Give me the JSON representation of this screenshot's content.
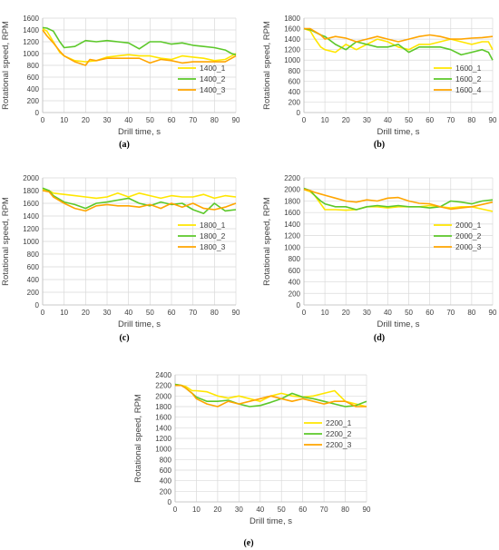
{
  "colors": {
    "series1": "#ffe600",
    "series2": "#5cc82a",
    "series3": "#ffa500"
  },
  "chart_data": [
    {
      "panel": "(a)",
      "type": "line",
      "xlabel": "Drill time, s",
      "ylabel": "Rotational speed, RPM",
      "xlim": [
        0,
        90
      ],
      "ylim": [
        0,
        1600
      ],
      "xticks": [
        0,
        10,
        20,
        30,
        40,
        50,
        60,
        70,
        80,
        90
      ],
      "yticks": [
        0,
        200,
        400,
        600,
        800,
        1000,
        1200,
        1400,
        1600
      ],
      "grid": true,
      "legend_position": "bottom-right",
      "series": [
        {
          "name": "1400_1",
          "color": "#ffe600",
          "x": [
            0,
            2,
            5,
            8,
            10,
            15,
            20,
            25,
            30,
            35,
            40,
            45,
            50,
            55,
            60,
            65,
            70,
            75,
            80,
            85,
            90
          ],
          "y": [
            1420,
            1380,
            1200,
            1020,
            960,
            880,
            860,
            880,
            940,
            960,
            980,
            960,
            960,
            920,
            900,
            960,
            940,
            920,
            880,
            900,
            1000
          ]
        },
        {
          "name": "1400_2",
          "color": "#5cc82a",
          "x": [
            0,
            2,
            5,
            8,
            10,
            15,
            20,
            25,
            30,
            35,
            40,
            45,
            50,
            55,
            60,
            65,
            70,
            75,
            80,
            85,
            88,
            90
          ],
          "y": [
            1440,
            1430,
            1380,
            1200,
            1100,
            1120,
            1220,
            1200,
            1220,
            1200,
            1180,
            1080,
            1200,
            1200,
            1160,
            1180,
            1140,
            1120,
            1100,
            1060,
            1000,
            980
          ]
        },
        {
          "name": "1400_3",
          "color": "#ffa500",
          "x": [
            0,
            2,
            5,
            8,
            10,
            15,
            20,
            22,
            25,
            30,
            35,
            40,
            45,
            50,
            55,
            60,
            65,
            70,
            75,
            80,
            85,
            90
          ],
          "y": [
            1400,
            1300,
            1180,
            1040,
            960,
            860,
            800,
            900,
            880,
            920,
            920,
            920,
            920,
            840,
            900,
            880,
            840,
            860,
            860,
            860,
            860,
            960
          ]
        }
      ]
    },
    {
      "panel": "(b)",
      "type": "line",
      "xlabel": "Drill time, s",
      "ylabel": "Rotational speed, RPM",
      "xlim": [
        0,
        90
      ],
      "ylim": [
        0,
        1800
      ],
      "xticks": [
        0,
        10,
        20,
        30,
        40,
        50,
        60,
        70,
        80,
        90
      ],
      "yticks": [
        0,
        200,
        400,
        600,
        800,
        1000,
        1200,
        1400,
        1600,
        1800
      ],
      "grid": true,
      "legend_position": "bottom-right",
      "series": [
        {
          "name": "1600_1",
          "color": "#ffe600",
          "x": [
            0,
            3,
            5,
            8,
            10,
            15,
            20,
            25,
            30,
            35,
            40,
            45,
            50,
            55,
            60,
            65,
            70,
            75,
            80,
            85,
            88,
            90
          ],
          "y": [
            1600,
            1560,
            1420,
            1250,
            1200,
            1150,
            1300,
            1200,
            1300,
            1400,
            1350,
            1250,
            1200,
            1300,
            1300,
            1350,
            1400,
            1350,
            1300,
            1350,
            1350,
            1200
          ]
        },
        {
          "name": "1600_2",
          "color": "#5cc82a",
          "x": [
            0,
            3,
            5,
            8,
            10,
            15,
            20,
            25,
            30,
            35,
            40,
            45,
            50,
            55,
            60,
            65,
            70,
            75,
            80,
            85,
            88,
            90
          ],
          "y": [
            1600,
            1580,
            1540,
            1480,
            1450,
            1300,
            1200,
            1350,
            1300,
            1250,
            1250,
            1300,
            1150,
            1250,
            1250,
            1250,
            1200,
            1100,
            1150,
            1200,
            1150,
            1000
          ]
        },
        {
          "name": "1600_4",
          "color": "#ffa500",
          "x": [
            0,
            3,
            5,
            8,
            10,
            15,
            20,
            25,
            30,
            35,
            40,
            45,
            50,
            55,
            60,
            65,
            70,
            75,
            80,
            85,
            90
          ],
          "y": [
            1600,
            1600,
            1550,
            1480,
            1400,
            1450,
            1420,
            1350,
            1400,
            1450,
            1400,
            1350,
            1400,
            1450,
            1480,
            1450,
            1400,
            1400,
            1420,
            1430,
            1450
          ]
        }
      ]
    },
    {
      "panel": "(c)",
      "type": "line",
      "xlabel": "Drill time, s",
      "ylabel": "Rotational speed, RPM",
      "xlim": [
        0,
        90
      ],
      "ylim": [
        0,
        2000
      ],
      "xticks": [
        0,
        10,
        20,
        30,
        40,
        50,
        60,
        70,
        80,
        90
      ],
      "yticks": [
        0,
        200,
        400,
        600,
        800,
        1000,
        1200,
        1400,
        1600,
        1800,
        2000
      ],
      "grid": true,
      "legend_position": "bottom-right",
      "series": [
        {
          "name": "1800_1",
          "color": "#ffe600",
          "x": [
            0,
            3,
            5,
            10,
            15,
            20,
            25,
            30,
            35,
            40,
            45,
            50,
            55,
            60,
            65,
            70,
            75,
            80,
            85,
            90
          ],
          "y": [
            1820,
            1800,
            1760,
            1740,
            1720,
            1700,
            1680,
            1700,
            1760,
            1700,
            1760,
            1720,
            1680,
            1720,
            1700,
            1700,
            1740,
            1680,
            1720,
            1700
          ]
        },
        {
          "name": "1800_2",
          "color": "#5cc82a",
          "x": [
            0,
            3,
            5,
            10,
            15,
            20,
            25,
            30,
            35,
            40,
            45,
            50,
            55,
            60,
            65,
            70,
            75,
            80,
            85,
            90
          ],
          "y": [
            1840,
            1800,
            1720,
            1620,
            1580,
            1520,
            1600,
            1620,
            1650,
            1680,
            1600,
            1560,
            1620,
            1580,
            1600,
            1500,
            1440,
            1600,
            1480,
            1500
          ]
        },
        {
          "name": "1800_3",
          "color": "#ffa500",
          "x": [
            0,
            3,
            5,
            10,
            15,
            20,
            25,
            30,
            35,
            40,
            45,
            50,
            55,
            60,
            65,
            70,
            75,
            80,
            85,
            90
          ],
          "y": [
            1800,
            1780,
            1700,
            1600,
            1520,
            1480,
            1560,
            1580,
            1560,
            1560,
            1540,
            1580,
            1520,
            1600,
            1540,
            1600,
            1520,
            1500,
            1540,
            1600
          ]
        }
      ]
    },
    {
      "panel": "(d)",
      "type": "line",
      "xlabel": "Drill time, s",
      "ylabel": "Rotational speed, RPM",
      "xlim": [
        0,
        90
      ],
      "ylim": [
        0,
        2200
      ],
      "xticks": [
        0,
        10,
        20,
        30,
        40,
        50,
        60,
        70,
        80,
        90
      ],
      "yticks": [
        0,
        200,
        400,
        600,
        800,
        1000,
        1200,
        1400,
        1600,
        1800,
        2000,
        2200
      ],
      "grid": true,
      "legend_position": "bottom-right",
      "series": [
        {
          "name": "2000_1",
          "color": "#ffe600",
          "x": [
            0,
            3,
            5,
            8,
            10,
            15,
            20,
            25,
            30,
            35,
            40,
            45,
            50,
            55,
            60,
            65,
            70,
            75,
            80,
            85,
            90
          ],
          "y": [
            2000,
            1960,
            1900,
            1750,
            1650,
            1650,
            1640,
            1650,
            1700,
            1700,
            1680,
            1700,
            1700,
            1700,
            1720,
            1700,
            1680,
            1700,
            1700,
            1660,
            1620
          ]
        },
        {
          "name": "2000_2",
          "color": "#5cc82a",
          "x": [
            0,
            3,
            5,
            8,
            10,
            15,
            20,
            25,
            30,
            35,
            40,
            45,
            50,
            55,
            60,
            65,
            70,
            75,
            80,
            85,
            90
          ],
          "y": [
            2020,
            1980,
            1900,
            1800,
            1750,
            1700,
            1700,
            1650,
            1700,
            1720,
            1700,
            1720,
            1700,
            1700,
            1680,
            1700,
            1800,
            1780,
            1750,
            1800,
            1820
          ]
        },
        {
          "name": "2000_3",
          "color": "#ffa500",
          "x": [
            0,
            3,
            5,
            8,
            10,
            15,
            20,
            25,
            30,
            35,
            40,
            45,
            50,
            55,
            60,
            65,
            70,
            75,
            80,
            85,
            90
          ],
          "y": [
            2000,
            1980,
            1950,
            1920,
            1900,
            1850,
            1800,
            1780,
            1820,
            1800,
            1850,
            1860,
            1800,
            1760,
            1750,
            1700,
            1660,
            1680,
            1700,
            1740,
            1780
          ]
        }
      ]
    },
    {
      "panel": "(e)",
      "type": "line",
      "xlabel": "Drill time, s",
      "ylabel": "Rotational speed, RPM",
      "xlim": [
        0,
        90
      ],
      "ylim": [
        0,
        2400
      ],
      "xticks": [
        0,
        10,
        20,
        30,
        40,
        50,
        60,
        70,
        80,
        90
      ],
      "yticks": [
        0,
        200,
        400,
        600,
        800,
        1000,
        1200,
        1400,
        1600,
        1800,
        2000,
        2200,
        2400
      ],
      "grid": true,
      "legend_position": "bottom-right",
      "series": [
        {
          "name": "2200_1",
          "color": "#ffe600",
          "x": [
            0,
            3,
            5,
            8,
            10,
            15,
            20,
            25,
            30,
            35,
            40,
            45,
            50,
            55,
            60,
            65,
            70,
            75,
            80,
            85,
            90
          ],
          "y": [
            2220,
            2200,
            2180,
            2100,
            2100,
            2080,
            2000,
            1960,
            2000,
            1950,
            1900,
            2000,
            2050,
            2000,
            1980,
            2000,
            2050,
            2100,
            1900,
            1850,
            1800
          ]
        },
        {
          "name": "2200_2",
          "color": "#5cc82a",
          "x": [
            0,
            3,
            5,
            8,
            10,
            15,
            20,
            25,
            30,
            35,
            40,
            45,
            50,
            55,
            60,
            65,
            70,
            75,
            80,
            85,
            90
          ],
          "y": [
            2220,
            2200,
            2150,
            2050,
            1980,
            1900,
            1900,
            1920,
            1850,
            1800,
            1820,
            1880,
            1950,
            2050,
            1980,
            1950,
            1900,
            1850,
            1800,
            1820,
            1900
          ]
        },
        {
          "name": "2200_3",
          "color": "#ffa500",
          "x": [
            0,
            3,
            5,
            8,
            10,
            15,
            20,
            25,
            30,
            35,
            40,
            45,
            50,
            55,
            60,
            65,
            70,
            75,
            80,
            85,
            90
          ],
          "y": [
            2200,
            2200,
            2150,
            2050,
            1950,
            1850,
            1800,
            1900,
            1850,
            1900,
            1950,
            2000,
            1950,
            1900,
            1950,
            1900,
            1850,
            1900,
            1900,
            1800,
            1800
          ]
        }
      ]
    }
  ]
}
